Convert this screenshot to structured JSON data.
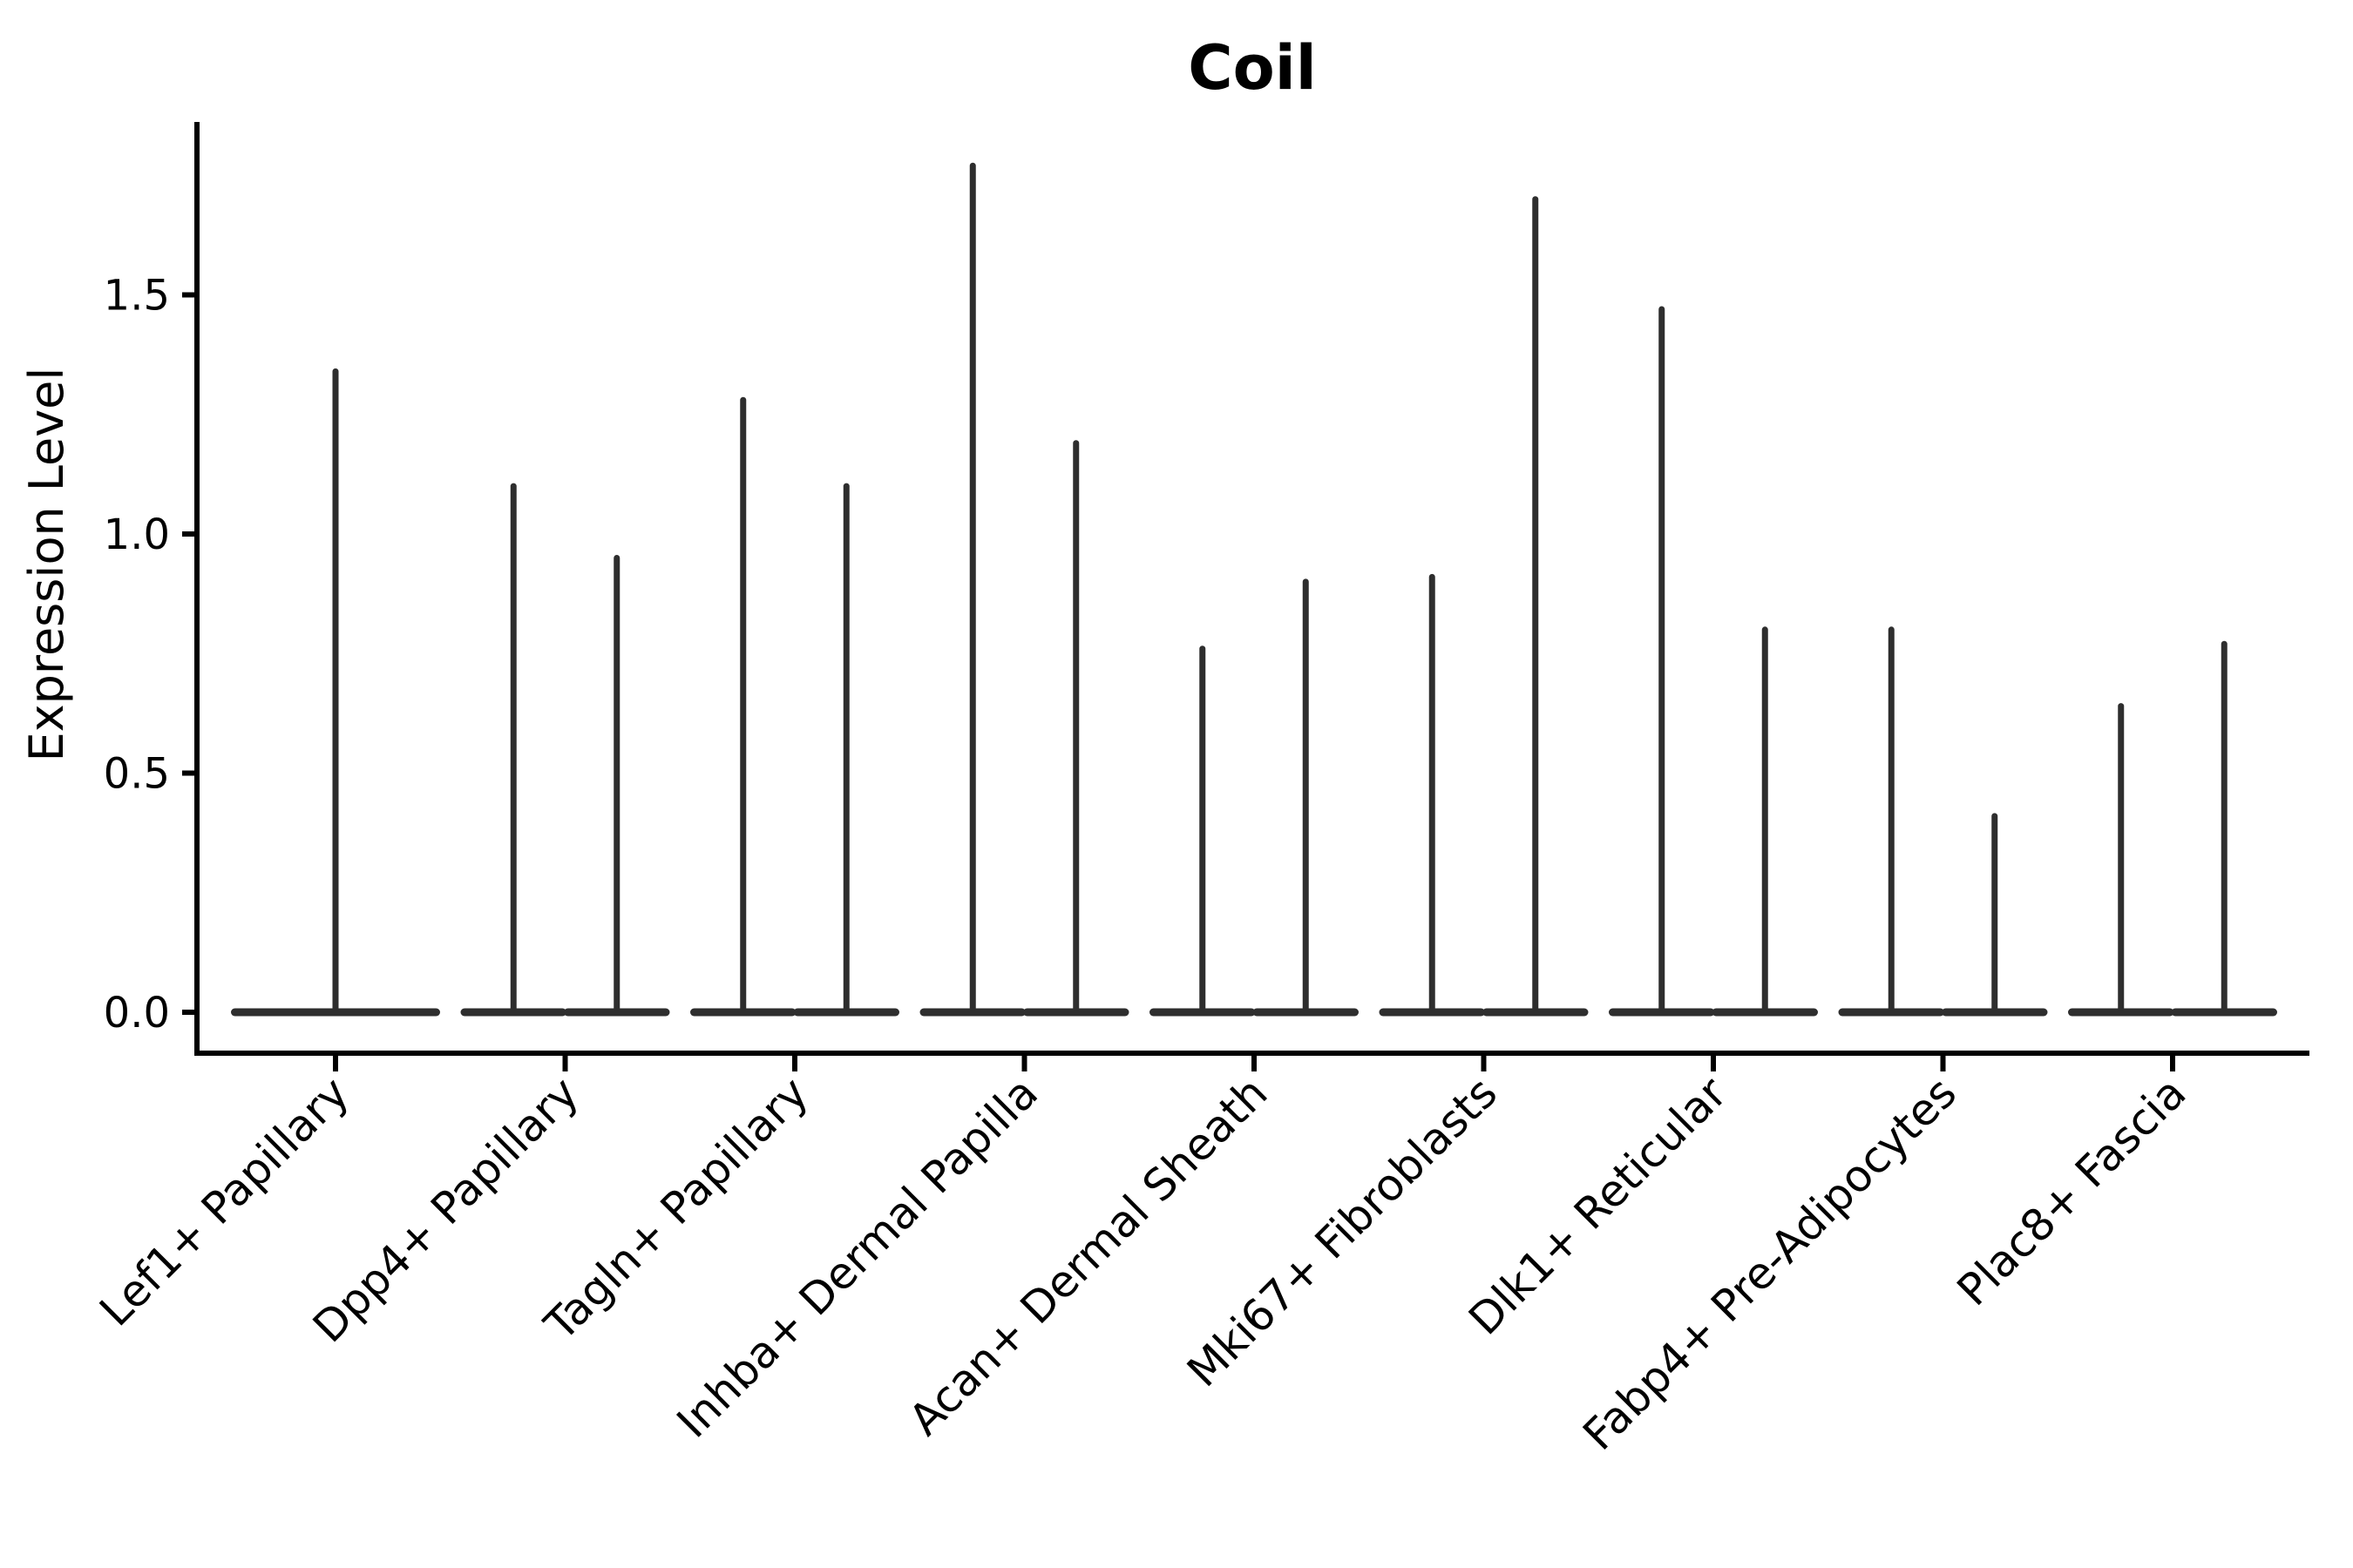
{
  "chart_data": {
    "type": "violin",
    "title": "Coil",
    "ylabel": "Expression Level",
    "xlabel": "",
    "ylim": [
      -0.09,
      1.86
    ],
    "yticks": [
      "0.0",
      "0.5",
      "1.0",
      "1.5"
    ],
    "ytick_values": [
      0.0,
      0.5,
      1.0,
      1.5
    ],
    "grid": false,
    "legend_position": "none",
    "violin_style": "flat base at zero with thin spike to maximum expression",
    "violin_color": "#2e2e2e",
    "axis_color": "#000000",
    "categories": [
      "Lef1+ Papillary",
      "Dpp4+ Papillary",
      "Tagln+ Papillary",
      "Inhba+ Dermal Papilla",
      "Acan+ Dermal Sheath",
      "Mki67+ Fibroblasts",
      "Dlk1+ Reticular",
      "Fabp4+ Pre-Adipocytes",
      "Plac8+ Fascia"
    ],
    "series": [
      {
        "category": "Lef1+ Papillary",
        "violin_max_values": [
          1.34
        ]
      },
      {
        "category": "Dpp4+ Papillary",
        "violin_max_values": [
          1.1,
          0.95
        ]
      },
      {
        "category": "Tagln+ Papillary",
        "violin_max_values": [
          1.28,
          1.1
        ]
      },
      {
        "category": "Inhba+ Dermal Papilla",
        "violin_max_values": [
          1.77,
          1.19
        ]
      },
      {
        "category": "Acan+ Dermal Sheath",
        "violin_max_values": [
          0.76,
          0.9
        ]
      },
      {
        "category": "Mki67+ Fibroblasts",
        "violin_max_values": [
          0.91,
          1.7
        ]
      },
      {
        "category": "Dlk1+ Reticular",
        "violin_max_values": [
          1.47,
          0.8
        ]
      },
      {
        "category": "Fabp4+ Pre-Adipocytes",
        "violin_max_values": [
          0.8,
          0.41
        ]
      },
      {
        "category": "Plac8+ Fascia",
        "violin_max_values": [
          0.64,
          0.77
        ]
      }
    ]
  }
}
